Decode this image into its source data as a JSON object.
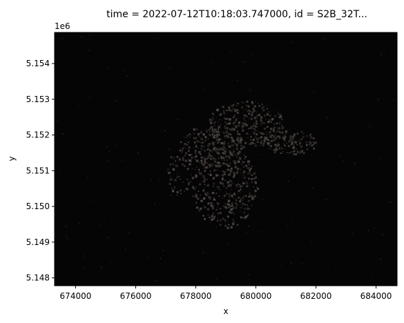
{
  "chart_data": {
    "type": "heatmap",
    "title": "time = 2022-07-12T10:18:03.747000, id = S2B_32T...",
    "xlabel": "x",
    "ylabel": "y",
    "y_offset_label": "1e6",
    "xlim": [
      673300,
      684700
    ],
    "ylim": [
      5.14778,
      5.15487
    ],
    "x_ticks": [
      {
        "value": 674000,
        "label": "674000"
      },
      {
        "value": 676000,
        "label": "676000"
      },
      {
        "value": 678000,
        "label": "678000"
      },
      {
        "value": 680000,
        "label": "680000"
      },
      {
        "value": 682000,
        "label": "682000"
      },
      {
        "value": 684000,
        "label": "684000"
      }
    ],
    "y_ticks": [
      {
        "value": 5.148,
        "label": "5.148"
      },
      {
        "value": 5.149,
        "label": "5.149"
      },
      {
        "value": 5.15,
        "label": "5.150"
      },
      {
        "value": 5.151,
        "label": "5.151"
      },
      {
        "value": 5.152,
        "label": "5.152"
      },
      {
        "value": 5.153,
        "label": "5.153"
      },
      {
        "value": 5.154,
        "label": "5.154"
      }
    ],
    "grid": false,
    "background_color": "#050505"
  }
}
